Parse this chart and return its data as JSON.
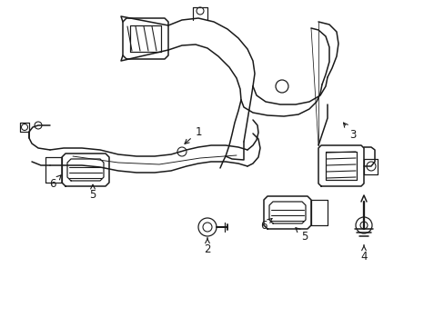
{
  "background_color": "#ffffff",
  "line_color": "#1a1a1a",
  "line_width": 1.1,
  "label_fontsize": 8.5,
  "figsize": [
    4.89,
    3.6
  ],
  "dpi": 100
}
